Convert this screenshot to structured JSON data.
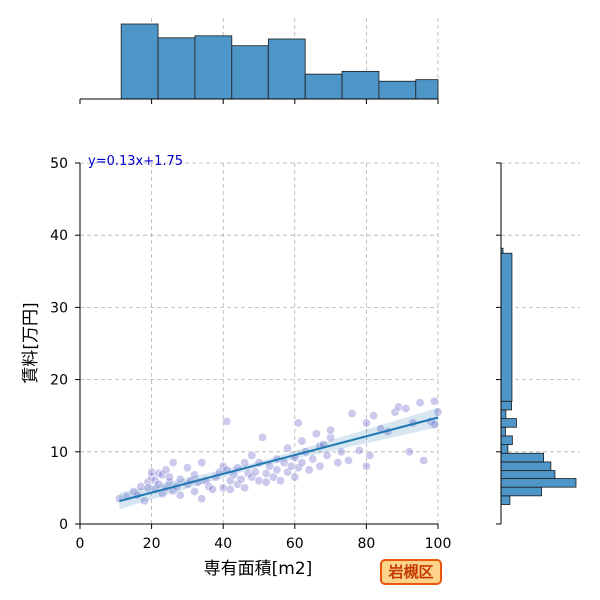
{
  "chart_data": {
    "type": "scatter",
    "title": "",
    "xlabel": "専有面積[m2]",
    "ylabel": "賃料[万円]",
    "xlim": [
      0,
      100
    ],
    "ylim": [
      0,
      50
    ],
    "x_ticks": [
      "0",
      "20",
      "40",
      "60",
      "80",
      "100"
    ],
    "y_ticks": [
      "0",
      "10",
      "20",
      "30",
      "40",
      "50"
    ],
    "grid": true,
    "regression": {
      "label": "y=0.13x+1.75",
      "slope": 0.13,
      "intercept": 1.75,
      "x_range": [
        11,
        100
      ]
    },
    "badge": "岩槻区",
    "points": [
      [
        11,
        3.5
      ],
      [
        13,
        3.8
      ],
      [
        15,
        4.5
      ],
      [
        16,
        4.0
      ],
      [
        17,
        5.2
      ],
      [
        18,
        3.2
      ],
      [
        19,
        5.8
      ],
      [
        19,
        5.0
      ],
      [
        20,
        6.5
      ],
      [
        20,
        7.2
      ],
      [
        21,
        4.8
      ],
      [
        21,
        6.0
      ],
      [
        22,
        5.5
      ],
      [
        22,
        7.0
      ],
      [
        23,
        6.8
      ],
      [
        23,
        4.2
      ],
      [
        24,
        7.5
      ],
      [
        24,
        5.0
      ],
      [
        25,
        5.8
      ],
      [
        25,
        6.5
      ],
      [
        26,
        4.6
      ],
      [
        26,
        8.5
      ],
      [
        27,
        5.2
      ],
      [
        28,
        6.2
      ],
      [
        28,
        4.0
      ],
      [
        30,
        5.5
      ],
      [
        30,
        7.8
      ],
      [
        31,
        6.0
      ],
      [
        32,
        4.5
      ],
      [
        32,
        6.8
      ],
      [
        33,
        5.8
      ],
      [
        34,
        3.5
      ],
      [
        34,
        8.5
      ],
      [
        35,
        6.0
      ],
      [
        36,
        5.2
      ],
      [
        37,
        4.8
      ],
      [
        38,
        6.5
      ],
      [
        39,
        7.2
      ],
      [
        40,
        5.0
      ],
      [
        40,
        8.0
      ],
      [
        41,
        7.5
      ],
      [
        41,
        14.2
      ],
      [
        42,
        6.0
      ],
      [
        42,
        4.8
      ],
      [
        43,
        6.8
      ],
      [
        44,
        5.5
      ],
      [
        44,
        7.8
      ],
      [
        45,
        6.2
      ],
      [
        46,
        8.5
      ],
      [
        46,
        5.0
      ],
      [
        47,
        7.0
      ],
      [
        48,
        6.5
      ],
      [
        48,
        9.5
      ],
      [
        49,
        7.2
      ],
      [
        50,
        6.0
      ],
      [
        50,
        8.5
      ],
      [
        51,
        12.0
      ],
      [
        52,
        7.0
      ],
      [
        52,
        5.8
      ],
      [
        53,
        8.0
      ],
      [
        54,
        6.5
      ],
      [
        55,
        9.0
      ],
      [
        55,
        7.5
      ],
      [
        56,
        6.0
      ],
      [
        57,
        8.5
      ],
      [
        58,
        7.2
      ],
      [
        58,
        10.5
      ],
      [
        59,
        8.0
      ],
      [
        60,
        6.5
      ],
      [
        60,
        9.2
      ],
      [
        61,
        7.8
      ],
      [
        61,
        14.0
      ],
      [
        62,
        8.5
      ],
      [
        62,
        11.5
      ],
      [
        63,
        10.0
      ],
      [
        64,
        7.5
      ],
      [
        65,
        9.0
      ],
      [
        66,
        12.5
      ],
      [
        67,
        10.8
      ],
      [
        67,
        8.0
      ],
      [
        68,
        11.0
      ],
      [
        69,
        9.5
      ],
      [
        70,
        12.0
      ],
      [
        70,
        13.0
      ],
      [
        72,
        8.5
      ],
      [
        73,
        10.0
      ],
      [
        75,
        8.8
      ],
      [
        76,
        15.3
      ],
      [
        78,
        10.2
      ],
      [
        80,
        14.0
      ],
      [
        80,
        8.0
      ],
      [
        81,
        9.5
      ],
      [
        82,
        15.0
      ],
      [
        84,
        13.2
      ],
      [
        86,
        12.8
      ],
      [
        88,
        15.5
      ],
      [
        89,
        16.2
      ],
      [
        91,
        16.0
      ],
      [
        92,
        10.0
      ],
      [
        93,
        14.0
      ],
      [
        95,
        16.8
      ],
      [
        96,
        8.8
      ],
      [
        98,
        14.2
      ],
      [
        99,
        17.0
      ],
      [
        99,
        13.8
      ],
      [
        100,
        15.5
      ]
    ],
    "x_hist": {
      "bin_edges": [
        0,
        11.5,
        21.8,
        32.1,
        42.4,
        52.6,
        62.9,
        73.2,
        83.5,
        93.8,
        100
      ],
      "counts": [
        0,
        19,
        15.5,
        16,
        13.5,
        15.2,
        6.3,
        7,
        4.5,
        4.9
      ]
    },
    "y_hist": {
      "bin_edges": [
        2.7,
        3.9,
        5.1,
        6.3,
        7.4,
        8.6,
        9.8,
        11.0,
        12.2,
        13.4,
        14.6,
        15.8,
        17.0,
        37.5,
        38.2
      ],
      "counts": [
        2.2,
        10.0,
        18.5,
        13.3,
        12.3,
        10.5,
        1.7,
        2.8,
        1.1,
        3.8,
        1.2,
        2.6,
        2.7,
        0.5
      ]
    }
  }
}
